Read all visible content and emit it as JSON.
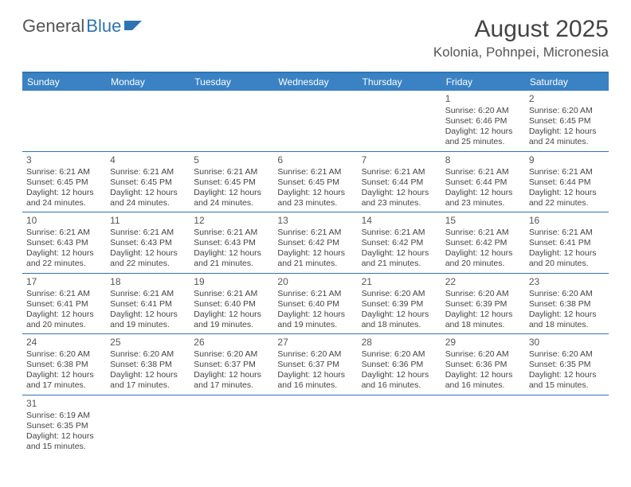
{
  "logo": {
    "text1": "General",
    "text2": "Blue"
  },
  "title": "August 2025",
  "location": "Kolonia, Pohnpei, Micronesia",
  "colors": {
    "header_bg": "#3a82c4",
    "header_border": "#2e74b5",
    "row_border": "#2e74b5",
    "text": "#444444",
    "logo_gray": "#555555",
    "logo_blue": "#2e74b5"
  },
  "days_of_week": [
    "Sunday",
    "Monday",
    "Tuesday",
    "Wednesday",
    "Thursday",
    "Friday",
    "Saturday"
  ],
  "weeks": [
    [
      null,
      null,
      null,
      null,
      null,
      {
        "n": "1",
        "sr": "Sunrise: 6:20 AM",
        "ss": "Sunset: 6:46 PM",
        "d1": "Daylight: 12 hours",
        "d2": "and 25 minutes."
      },
      {
        "n": "2",
        "sr": "Sunrise: 6:20 AM",
        "ss": "Sunset: 6:45 PM",
        "d1": "Daylight: 12 hours",
        "d2": "and 24 minutes."
      }
    ],
    [
      {
        "n": "3",
        "sr": "Sunrise: 6:21 AM",
        "ss": "Sunset: 6:45 PM",
        "d1": "Daylight: 12 hours",
        "d2": "and 24 minutes."
      },
      {
        "n": "4",
        "sr": "Sunrise: 6:21 AM",
        "ss": "Sunset: 6:45 PM",
        "d1": "Daylight: 12 hours",
        "d2": "and 24 minutes."
      },
      {
        "n": "5",
        "sr": "Sunrise: 6:21 AM",
        "ss": "Sunset: 6:45 PM",
        "d1": "Daylight: 12 hours",
        "d2": "and 24 minutes."
      },
      {
        "n": "6",
        "sr": "Sunrise: 6:21 AM",
        "ss": "Sunset: 6:45 PM",
        "d1": "Daylight: 12 hours",
        "d2": "and 23 minutes."
      },
      {
        "n": "7",
        "sr": "Sunrise: 6:21 AM",
        "ss": "Sunset: 6:44 PM",
        "d1": "Daylight: 12 hours",
        "d2": "and 23 minutes."
      },
      {
        "n": "8",
        "sr": "Sunrise: 6:21 AM",
        "ss": "Sunset: 6:44 PM",
        "d1": "Daylight: 12 hours",
        "d2": "and 23 minutes."
      },
      {
        "n": "9",
        "sr": "Sunrise: 6:21 AM",
        "ss": "Sunset: 6:44 PM",
        "d1": "Daylight: 12 hours",
        "d2": "and 22 minutes."
      }
    ],
    [
      {
        "n": "10",
        "sr": "Sunrise: 6:21 AM",
        "ss": "Sunset: 6:43 PM",
        "d1": "Daylight: 12 hours",
        "d2": "and 22 minutes."
      },
      {
        "n": "11",
        "sr": "Sunrise: 6:21 AM",
        "ss": "Sunset: 6:43 PM",
        "d1": "Daylight: 12 hours",
        "d2": "and 22 minutes."
      },
      {
        "n": "12",
        "sr": "Sunrise: 6:21 AM",
        "ss": "Sunset: 6:43 PM",
        "d1": "Daylight: 12 hours",
        "d2": "and 21 minutes."
      },
      {
        "n": "13",
        "sr": "Sunrise: 6:21 AM",
        "ss": "Sunset: 6:42 PM",
        "d1": "Daylight: 12 hours",
        "d2": "and 21 minutes."
      },
      {
        "n": "14",
        "sr": "Sunrise: 6:21 AM",
        "ss": "Sunset: 6:42 PM",
        "d1": "Daylight: 12 hours",
        "d2": "and 21 minutes."
      },
      {
        "n": "15",
        "sr": "Sunrise: 6:21 AM",
        "ss": "Sunset: 6:42 PM",
        "d1": "Daylight: 12 hours",
        "d2": "and 20 minutes."
      },
      {
        "n": "16",
        "sr": "Sunrise: 6:21 AM",
        "ss": "Sunset: 6:41 PM",
        "d1": "Daylight: 12 hours",
        "d2": "and 20 minutes."
      }
    ],
    [
      {
        "n": "17",
        "sr": "Sunrise: 6:21 AM",
        "ss": "Sunset: 6:41 PM",
        "d1": "Daylight: 12 hours",
        "d2": "and 20 minutes."
      },
      {
        "n": "18",
        "sr": "Sunrise: 6:21 AM",
        "ss": "Sunset: 6:41 PM",
        "d1": "Daylight: 12 hours",
        "d2": "and 19 minutes."
      },
      {
        "n": "19",
        "sr": "Sunrise: 6:21 AM",
        "ss": "Sunset: 6:40 PM",
        "d1": "Daylight: 12 hours",
        "d2": "and 19 minutes."
      },
      {
        "n": "20",
        "sr": "Sunrise: 6:21 AM",
        "ss": "Sunset: 6:40 PM",
        "d1": "Daylight: 12 hours",
        "d2": "and 19 minutes."
      },
      {
        "n": "21",
        "sr": "Sunrise: 6:20 AM",
        "ss": "Sunset: 6:39 PM",
        "d1": "Daylight: 12 hours",
        "d2": "and 18 minutes."
      },
      {
        "n": "22",
        "sr": "Sunrise: 6:20 AM",
        "ss": "Sunset: 6:39 PM",
        "d1": "Daylight: 12 hours",
        "d2": "and 18 minutes."
      },
      {
        "n": "23",
        "sr": "Sunrise: 6:20 AM",
        "ss": "Sunset: 6:38 PM",
        "d1": "Daylight: 12 hours",
        "d2": "and 18 minutes."
      }
    ],
    [
      {
        "n": "24",
        "sr": "Sunrise: 6:20 AM",
        "ss": "Sunset: 6:38 PM",
        "d1": "Daylight: 12 hours",
        "d2": "and 17 minutes."
      },
      {
        "n": "25",
        "sr": "Sunrise: 6:20 AM",
        "ss": "Sunset: 6:38 PM",
        "d1": "Daylight: 12 hours",
        "d2": "and 17 minutes."
      },
      {
        "n": "26",
        "sr": "Sunrise: 6:20 AM",
        "ss": "Sunset: 6:37 PM",
        "d1": "Daylight: 12 hours",
        "d2": "and 17 minutes."
      },
      {
        "n": "27",
        "sr": "Sunrise: 6:20 AM",
        "ss": "Sunset: 6:37 PM",
        "d1": "Daylight: 12 hours",
        "d2": "and 16 minutes."
      },
      {
        "n": "28",
        "sr": "Sunrise: 6:20 AM",
        "ss": "Sunset: 6:36 PM",
        "d1": "Daylight: 12 hours",
        "d2": "and 16 minutes."
      },
      {
        "n": "29",
        "sr": "Sunrise: 6:20 AM",
        "ss": "Sunset: 6:36 PM",
        "d1": "Daylight: 12 hours",
        "d2": "and 16 minutes."
      },
      {
        "n": "30",
        "sr": "Sunrise: 6:20 AM",
        "ss": "Sunset: 6:35 PM",
        "d1": "Daylight: 12 hours",
        "d2": "and 15 minutes."
      }
    ],
    [
      {
        "n": "31",
        "sr": "Sunrise: 6:19 AM",
        "ss": "Sunset: 6:35 PM",
        "d1": "Daylight: 12 hours",
        "d2": "and 15 minutes."
      },
      null,
      null,
      null,
      null,
      null,
      null
    ]
  ]
}
